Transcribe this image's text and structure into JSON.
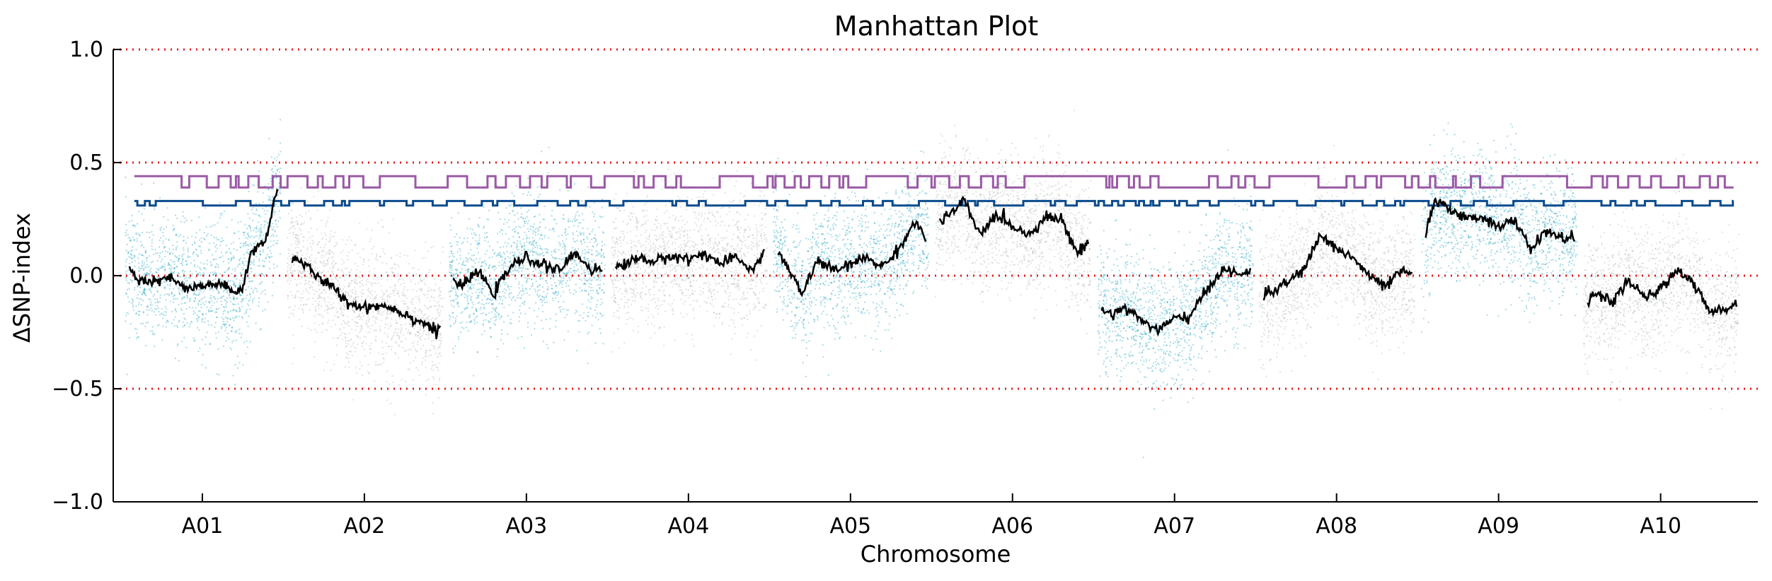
{
  "chart_data": {
    "type": "scatter",
    "title": "Manhattan Plot",
    "xlabel": "Chromosome",
    "ylabel": "ΔSNP-index",
    "ylim": [
      -1.0,
      1.0
    ],
    "yticks": [
      1.0,
      0.5,
      0.0,
      -0.5,
      -1.0
    ],
    "ytick_labels": [
      "1.0",
      "0.5",
      "0.0",
      "−0.5",
      "−1.0"
    ],
    "grid": false,
    "reference_lines": [
      1.0,
      0.5,
      0.0,
      -0.5
    ],
    "colors": {
      "scatter_alternating": [
        "#0f9bb9",
        "#a9b0b0"
      ],
      "threshold_outer": "#9b59a6",
      "threshold_inner": "#0b4b8e",
      "sliding_window": "#000000",
      "reference_line": "#e31a1c"
    },
    "chromosomes": [
      {
        "name": "A01",
        "start": 0.0,
        "end": 1.0,
        "scatter_color": "#0f9bb9",
        "trend": [
          [
            0.0,
            0.06
          ],
          [
            0.05,
            0.05
          ],
          [
            0.1,
            -0.02
          ],
          [
            0.2,
            -0.03
          ],
          [
            0.3,
            -0.01
          ],
          [
            0.4,
            -0.06
          ],
          [
            0.5,
            -0.05
          ],
          [
            0.6,
            -0.03
          ],
          [
            0.7,
            -0.08
          ],
          [
            0.75,
            -0.05
          ],
          [
            0.8,
            0.1
          ],
          [
            0.85,
            0.13
          ],
          [
            0.9,
            0.18
          ],
          [
            0.95,
            0.35
          ],
          [
            1.0,
            0.43
          ]
        ]
      },
      {
        "name": "A02",
        "start": 1.0,
        "end": 2.0,
        "scatter_color": "#a9b0b0",
        "trend": [
          [
            1.0,
            0.09
          ],
          [
            1.1,
            0.07
          ],
          [
            1.2,
            0.0
          ],
          [
            1.3,
            -0.05
          ],
          [
            1.4,
            -0.12
          ],
          [
            1.5,
            -0.14
          ],
          [
            1.6,
            -0.13
          ],
          [
            1.7,
            -0.15
          ],
          [
            1.8,
            -0.19
          ],
          [
            1.9,
            -0.22
          ],
          [
            1.95,
            -0.26
          ],
          [
            2.0,
            -0.1
          ]
        ]
      },
      {
        "name": "A03",
        "start": 2.0,
        "end": 3.0,
        "scatter_color": "#0f9bb9",
        "trend": [
          [
            2.0,
            0.01
          ],
          [
            2.1,
            -0.05
          ],
          [
            2.2,
            0.02
          ],
          [
            2.3,
            -0.08
          ],
          [
            2.4,
            0.04
          ],
          [
            2.5,
            0.08
          ],
          [
            2.6,
            0.05
          ],
          [
            2.7,
            0.02
          ],
          [
            2.8,
            0.1
          ],
          [
            2.9,
            0.03
          ],
          [
            3.0,
            0.02
          ]
        ]
      },
      {
        "name": "A04",
        "start": 3.0,
        "end": 4.0,
        "scatter_color": "#a9b0b0",
        "trend": [
          [
            3.0,
            0.02
          ],
          [
            3.1,
            0.05
          ],
          [
            3.2,
            0.08
          ],
          [
            3.3,
            0.06
          ],
          [
            3.4,
            0.09
          ],
          [
            3.5,
            0.07
          ],
          [
            3.6,
            0.1
          ],
          [
            3.7,
            0.05
          ],
          [
            3.8,
            0.08
          ],
          [
            3.9,
            0.02
          ],
          [
            4.0,
            0.16
          ]
        ]
      },
      {
        "name": "A05",
        "start": 4.0,
        "end": 5.0,
        "scatter_color": "#0f9bb9",
        "trend": [
          [
            4.0,
            0.16
          ],
          [
            4.1,
            0.05
          ],
          [
            4.2,
            -0.08
          ],
          [
            4.3,
            0.07
          ],
          [
            4.4,
            0.02
          ],
          [
            4.5,
            0.05
          ],
          [
            4.6,
            0.08
          ],
          [
            4.7,
            0.04
          ],
          [
            4.8,
            0.12
          ],
          [
            4.9,
            0.24
          ],
          [
            5.0,
            0.12
          ]
        ]
      },
      {
        "name": "A06",
        "start": 5.0,
        "end": 6.0,
        "scatter_color": "#a9b0b0",
        "trend": [
          [
            5.0,
            0.22
          ],
          [
            5.1,
            0.26
          ],
          [
            5.2,
            0.33
          ],
          [
            5.3,
            0.18
          ],
          [
            5.4,
            0.27
          ],
          [
            5.5,
            0.22
          ],
          [
            5.6,
            0.18
          ],
          [
            5.7,
            0.26
          ],
          [
            5.8,
            0.25
          ],
          [
            5.9,
            0.1
          ],
          [
            6.0,
            0.17
          ]
        ]
      },
      {
        "name": "A07",
        "start": 6.0,
        "end": 7.0,
        "scatter_color": "#0f9bb9",
        "trend": [
          [
            6.0,
            -0.12
          ],
          [
            6.1,
            -0.17
          ],
          [
            6.2,
            -0.14
          ],
          [
            6.3,
            -0.2
          ],
          [
            6.4,
            -0.24
          ],
          [
            6.5,
            -0.19
          ],
          [
            6.6,
            -0.18
          ],
          [
            6.7,
            -0.06
          ],
          [
            6.8,
            0.03
          ],
          [
            6.9,
            0.0
          ],
          [
            7.0,
            0.04
          ]
        ]
      },
      {
        "name": "A08",
        "start": 7.0,
        "end": 8.0,
        "scatter_color": "#a9b0b0",
        "trend": [
          [
            7.0,
            -0.1
          ],
          [
            7.1,
            -0.07
          ],
          [
            7.2,
            -0.03
          ],
          [
            7.3,
            0.03
          ],
          [
            7.4,
            0.18
          ],
          [
            7.5,
            0.12
          ],
          [
            7.6,
            0.08
          ],
          [
            7.7,
            0.0
          ],
          [
            7.8,
            -0.05
          ],
          [
            7.9,
            0.02
          ],
          [
            8.0,
            0.0
          ]
        ]
      },
      {
        "name": "A09",
        "start": 8.0,
        "end": 9.0,
        "scatter_color": "#0f9bb9",
        "trend": [
          [
            8.0,
            0.05
          ],
          [
            8.1,
            0.32
          ],
          [
            8.2,
            0.3
          ],
          [
            8.3,
            0.25
          ],
          [
            8.4,
            0.26
          ],
          [
            8.5,
            0.22
          ],
          [
            8.6,
            0.24
          ],
          [
            8.7,
            0.12
          ],
          [
            8.8,
            0.2
          ],
          [
            8.9,
            0.16
          ],
          [
            9.0,
            0.18
          ]
        ]
      },
      {
        "name": "A10",
        "start": 9.0,
        "end": 10.0,
        "scatter_color": "#a9b0b0",
        "trend": [
          [
            9.0,
            -0.14
          ],
          [
            9.1,
            -0.08
          ],
          [
            9.2,
            -0.12
          ],
          [
            9.3,
            -0.02
          ],
          [
            9.4,
            -0.1
          ],
          [
            9.5,
            -0.06
          ],
          [
            9.6,
            0.03
          ],
          [
            9.7,
            -0.03
          ],
          [
            9.8,
            -0.16
          ],
          [
            9.9,
            -0.15
          ],
          [
            10.0,
            -0.1
          ]
        ]
      }
    ],
    "threshold_outer_level": 0.42,
    "threshold_inner_level": 0.33,
    "xlim": [
      -0.05,
      10.1
    ]
  }
}
